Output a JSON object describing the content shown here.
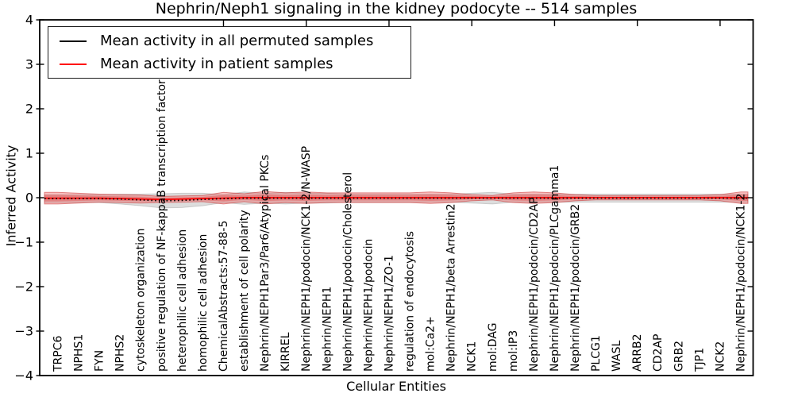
{
  "chart_data": {
    "type": "line",
    "title": "Nephrin/Neph1 signaling in the kidney podocyte -- 514 samples",
    "xlabel": "Cellular Entities",
    "ylabel": "Inferred Activity",
    "ylim": [
      -4,
      4
    ],
    "yticks": [
      "4",
      "3",
      "2",
      "1",
      "0",
      "−1",
      "−2",
      "−3",
      "−4"
    ],
    "grid": false,
    "legend_position": "upper left",
    "categories": [
      "TRPC6",
      "NPHS1",
      "FYN",
      "NPHS2",
      "cytoskeleton organization",
      "positive regulation of NF-kappaB transcription factor a",
      "heterophilic cell adhesion",
      "homophilic cell adhesion",
      "ChemicalAbstracts:57-88-5",
      "establishment of cell polarity",
      "Nephrin/NEPH1Par3/Par6/Atypical PKCs",
      "KIRREL",
      "Nephrin/NEPH1/podocin/NCK1-2/N-WASP",
      "Nephrin/NEPH1",
      "Nephrin/NEPH1/podocin/Cholesterol",
      "Nephrin/NEPH1/podocin",
      "Nephrin/NEPH1/ZO-1",
      "regulation of endocytosis",
      "mol:Ca2+",
      "Nephrin/NEPH1/beta Arrestin2",
      "NCK1",
      "mol:DAG",
      "mol:IP3",
      "Nephrin/NEPH1/podocin/CD2AP",
      "Nephrin/NEPH1/podocin/PLCgamma1",
      "Nephrin/NEPH1/podocin/GRB2",
      "PLCG1",
      "WASL",
      "ARRB2",
      "CD2AP",
      "GRB2",
      "TJP1",
      "NCK2",
      "Nephrin/NEPH1/podocin/NCK1-2"
    ],
    "series": [
      {
        "name": "Mean activity in all permuted samples",
        "color": "#000000",
        "line_style": "dotted",
        "band_color": "#b0b0b0",
        "values": [
          -0.02,
          -0.02,
          -0.02,
          -0.03,
          -0.05,
          -0.07,
          -0.06,
          -0.04,
          -0.02,
          -0.01,
          -0.01,
          -0.01,
          -0.01,
          -0.01,
          -0.01,
          -0.01,
          -0.01,
          -0.01,
          -0.01,
          -0.01,
          -0.01,
          -0.01,
          -0.01,
          -0.01,
          -0.01,
          -0.01,
          -0.01,
          -0.01,
          -0.01,
          -0.01,
          -0.01,
          -0.01,
          -0.01,
          -0.01
        ],
        "band_halfwidth": [
          0.09,
          0.09,
          0.09,
          0.11,
          0.13,
          0.16,
          0.16,
          0.14,
          0.09,
          0.14,
          0.11,
          0.13,
          0.11,
          0.11,
          0.09,
          0.09,
          0.09,
          0.09,
          0.09,
          0.09,
          0.11,
          0.13,
          0.09,
          0.09,
          0.09,
          0.09,
          0.09,
          0.09,
          0.09,
          0.09,
          0.09,
          0.09,
          0.09,
          0.09
        ]
      },
      {
        "name": "Mean activity in patient samples",
        "color": "#ff0000",
        "line_style": "solid",
        "band_color": "#f08080",
        "values": [
          -0.01,
          -0.01,
          -0.01,
          -0.02,
          -0.03,
          -0.04,
          -0.03,
          -0.02,
          -0.01,
          0,
          0,
          0,
          0,
          0,
          0,
          0,
          0,
          0,
          0,
          0,
          0,
          0,
          0,
          0,
          0,
          0,
          0,
          0,
          0,
          0,
          0,
          0,
          0,
          0
        ],
        "band_halfwidth": [
          0.13,
          0.11,
          0.09,
          0.09,
          0.09,
          0.07,
          0.07,
          0.07,
          0.13,
          0.09,
          0.14,
          0.11,
          0.13,
          0.11,
          0.11,
          0.11,
          0.11,
          0.11,
          0.13,
          0.11,
          0.07,
          0.05,
          0.11,
          0.13,
          0.11,
          0.07,
          0.05,
          0.05,
          0.05,
          0.05,
          0.05,
          0.05,
          0.07,
          0.13
        ]
      }
    ]
  }
}
